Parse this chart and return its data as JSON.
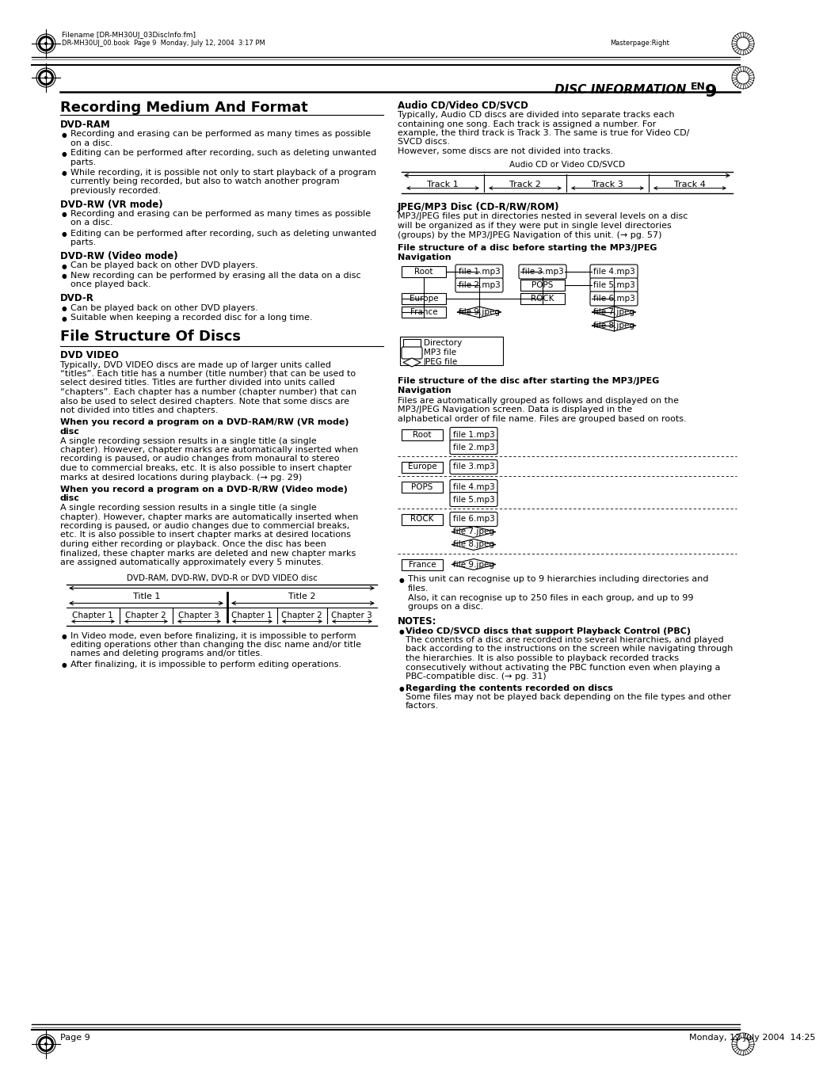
{
  "page_title": "DISC INFORMATION",
  "page_num": "9",
  "header_filename": "Filename [DR-MH30UJ_03DiscInfo.fm]",
  "header_bookline": "DR-MH30UJ_00.book  Page 9  Monday, July 12, 2004  3:17 PM",
  "header_masterpage": "Masterpage:Right",
  "footer_page": "Page 9",
  "footer_date": "Monday, 12 July 2004  14:25",
  "left_col_title": "Recording Medium And Format",
  "left_sections": [
    {
      "heading": "DVD-RAM",
      "bullets": [
        "Recording and erasing can be performed as many times as possible\non a disc.",
        "Editing can be performed after recording, such as deleting unwanted\nparts.",
        "While recording, it is possible not only to start playback of a program\ncurrently being recorded, but also to watch another program\npreviously recorded."
      ]
    },
    {
      "heading": "DVD-RW (VR mode)",
      "bullets": [
        "Recording and erasing can be performed as many times as possible\non a disc.",
        "Editing can be performed after recording, such as deleting unwanted\nparts."
      ]
    },
    {
      "heading": "DVD-RW (Video mode)",
      "bullets": [
        "Can be played back on other DVD players.",
        "New recording can be performed by erasing all the data on a disc\nonce played back."
      ]
    },
    {
      "heading": "DVD-R",
      "bullets": [
        "Can be played back on other DVD players.",
        "Suitable when keeping a recorded disc for a long time."
      ]
    }
  ],
  "left_col_title2": "File Structure Of Discs",
  "dvd_video_heading": "DVD VIDEO",
  "dvd_video_body": "Typically, DVD VIDEO discs are made up of larger units called\n“titles”. Each title has a number (title number) that can be used to\nselect desired titles. Titles are further divided into units called\n“chapters”. Each chapter has a number (chapter number) that can\nalso be used to select desired chapters. Note that some discs are\nnot divided into titles and chapters.",
  "vr_mode_heading": "When you record a program on a DVD-RAM/RW (VR mode)\ndisc",
  "vr_mode_body": "A single recording session results in a single title (a single\nchapter). However, chapter marks are automatically inserted when\nrecording is paused, or audio changes from monaural to stereo\ndue to commercial breaks, etc. It is also possible to insert chapter\nmarks at desired locations during playback. (→ pg. 29)",
  "video_mode_heading": "When you record a program on a DVD-R/RW (Video mode)\ndisc",
  "video_mode_body": "A single recording session results in a single title (a single\nchapter). However, chapter marks are automatically inserted when\nrecording is paused, or audio changes due to commercial breaks,\netc. It is also possible to insert chapter marks at desired locations\nduring either recording or playback. Once the disc has been\nfinalized, these chapter marks are deleted and new chapter marks\nare assigned automatically approximately every 5 minutes.",
  "dvd_diagram_label": "DVD-RAM, DVD-RW, DVD-R or DVD VIDEO disc",
  "dvd_bullets": [
    "In Video mode, even before finalizing, it is impossible to perform\nediting operations other than changing the disc name and/or title\nnames and deleting programs and/or titles.",
    "After finalizing, it is impossible to perform editing operations."
  ],
  "right_col_sections": [
    {
      "heading": "Audio CD/Video CD/SVCD",
      "body": "Typically, Audio CD discs are divided into separate tracks each\ncontaining one song. Each track is assigned a number. For\nexample, the third track is Track 3. The same is true for Video CD/\nSVCD discs.\nHowever, some discs are not divided into tracks."
    }
  ],
  "jpeg_heading": "JPEG/MP3 Disc (CD-R/RW/ROM)",
  "jpeg_body": "MP3/JPEG files put in directories nested in several levels on a disc\nwill be organized as if they were put in single level directories\n(groups) by the MP3/JPEG Navigation of this unit. (→ pg. 57)",
  "jpeg_struct_heading": "File structure of a disc before starting the MP3/JPEG\nNavigation",
  "after_nav_heading": "File structure of the disc after starting the MP3/JPEG\nNavigation",
  "after_nav_body": "Files are automatically grouped as follows and displayed on the\nMP3/JPEG Navigation screen. Data is displayed in the\nalphabetical order of file name. Files are grouped based on roots.",
  "recognise_bullet": "This unit can recognise up to 9 hierarchies including directories and\nfiles.\nAlso, it can recognise up to 250 files in each group, and up to 99\ngroups on a disc.",
  "notes_heading": "NOTES:",
  "notes": [
    {
      "label": "Video CD/SVCD discs that support Playback Control (PBC)",
      "body": "The contents of a disc are recorded into several hierarchies, and played\nback according to the instructions on the screen while navigating through\nthe hierarchies. It is also possible to playback recorded tracks\nconsecutively without activating the PBC function even when playing a\nPBC-compatible disc. (→ pg. 31)"
    },
    {
      "label": "Regarding the contents recorded on discs",
      "body": "Some files may not be played back depending on the file types and other\nfactors."
    }
  ]
}
